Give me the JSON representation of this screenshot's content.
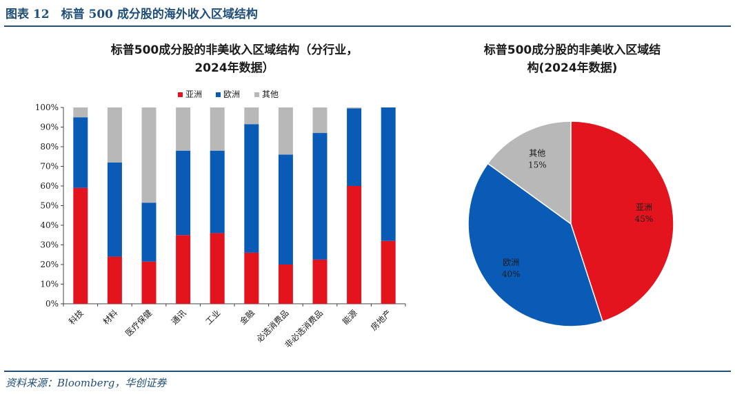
{
  "figure_title": "图表 12　标普 500 成分股的海外收入区域结构",
  "source": "资料来源：Bloomberg，华创证券",
  "colors": {
    "asia": "#e3141d",
    "europe": "#0a5bb5",
    "other": "#b8b8b8",
    "brand": "#1f4e79"
  },
  "chart_data": [
    {
      "type": "bar",
      "stacked": true,
      "title_lines": [
        "标普500成分股的非美收入区域结构（分行业，",
        "2024年数据）"
      ],
      "categories": [
        "科技",
        "材料",
        "医疗保健",
        "通讯",
        "工业",
        "金融",
        "必选消费品",
        "非必选消费品",
        "能源",
        "房地产"
      ],
      "series": [
        {
          "name": "亚洲",
          "color": "#e3141d",
          "values": [
            59,
            24,
            21.5,
            35,
            36,
            26,
            20,
            22.5,
            60,
            32
          ]
        },
        {
          "name": "欧洲",
          "color": "#0a5bb5",
          "values": [
            36,
            48,
            30,
            43,
            42,
            65.5,
            56,
            64.5,
            39.5,
            68
          ]
        },
        {
          "name": "其他",
          "color": "#b8b8b8",
          "values": [
            5,
            28,
            48.5,
            22,
            22,
            8.5,
            24,
            13,
            0.5,
            0
          ]
        }
      ],
      "yticks": [
        "0%",
        "10%",
        "20%",
        "30%",
        "40%",
        "50%",
        "60%",
        "70%",
        "80%",
        "90%",
        "100%"
      ],
      "ylim": [
        0,
        100
      ],
      "legend_position": "top-center",
      "grid": false
    },
    {
      "type": "pie",
      "title_lines": [
        "标普500成分股的非美收入区域结",
        "构(2024年数据)"
      ],
      "slices": [
        {
          "name": "亚洲",
          "value": 45,
          "label": "45%",
          "color": "#e3141d"
        },
        {
          "name": "欧洲",
          "value": 40,
          "label": "40%",
          "color": "#0a5bb5"
        },
        {
          "name": "其他",
          "value": 15,
          "label": "15%",
          "color": "#b8b8b8"
        }
      ]
    }
  ]
}
